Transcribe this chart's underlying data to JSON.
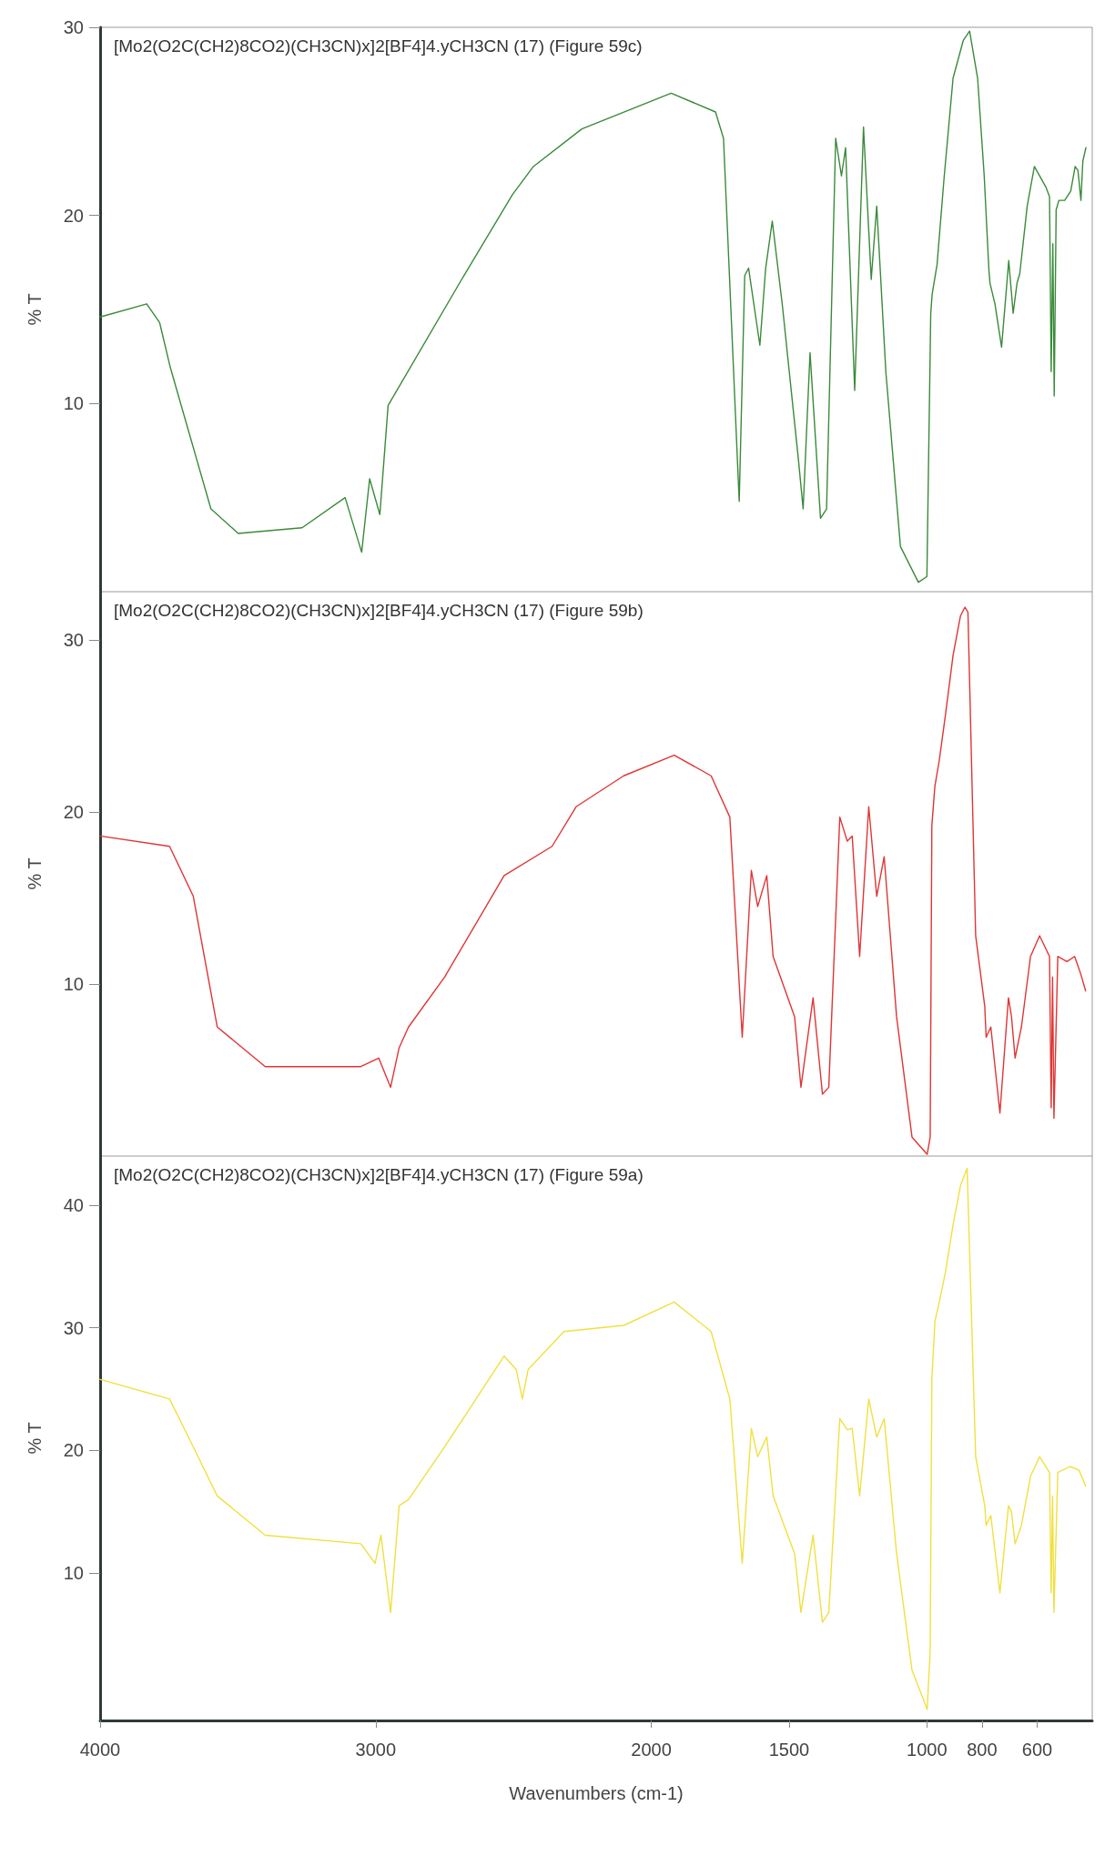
{
  "chart_data": [
    {
      "type": "line",
      "title": "[Mo2(O2C(CH2)8CO2)(CH3CN)x]2[BF4]4.yCH3CN (17) (Figure 59c)",
      "ylabel": "% T",
      "color": "#3a8a3a",
      "marker": "none",
      "tick_labels": "y",
      "xlim": [
        4000,
        400
      ],
      "xticks": [
        4000,
        3000,
        2000,
        1500,
        1000,
        800,
        600
      ],
      "ylim": [
        0,
        30
      ],
      "yticks": [
        10,
        20,
        30
      ],
      "x": [
        423,
        434,
        441,
        452,
        462,
        478,
        500,
        521,
        531,
        538,
        543,
        549,
        555,
        568,
        610,
        636,
        663,
        673,
        687,
        703,
        729,
        753,
        771,
        775,
        792,
        816,
        845,
        868,
        905,
        937,
        963,
        981,
        986,
        1000,
        1031,
        1096,
        1149,
        1182,
        1202,
        1230,
        1262,
        1295,
        1310,
        1331,
        1364,
        1386,
        1424,
        1449,
        1466,
        1525,
        1561,
        1585,
        1606,
        1647,
        1661,
        1681,
        1738,
        1767,
        1928,
        2252,
        2428,
        2504,
        2680,
        2955,
        2985,
        3022,
        3051,
        3111,
        3267,
        3499,
        3598,
        3745,
        3784,
        3831,
        4000
      ],
      "values": [
        23.6,
        22.9,
        20.8,
        22.4,
        22.6,
        21.3,
        20.8,
        20.8,
        20.3,
        10.4,
        18.5,
        11.7,
        21.0,
        21.5,
        22.6,
        20.5,
        16.9,
        16.4,
        14.8,
        17.6,
        13.0,
        15.3,
        16.4,
        17.1,
        22.1,
        27.3,
        29.8,
        29.3,
        27.3,
        22.1,
        17.4,
        15.8,
        14.8,
        0.8,
        0.5,
        2.4,
        11.7,
        20.5,
        16.6,
        24.7,
        10.7,
        23.6,
        22.1,
        24.1,
        4.4,
        3.9,
        12.7,
        4.4,
        7.0,
        15.3,
        19.7,
        17.2,
        13.1,
        17.2,
        16.8,
        4.8,
        24.1,
        25.5,
        26.5,
        24.6,
        22.6,
        21.1,
        16.8,
        9.9,
        4.1,
        6.0,
        2.1,
        5.0,
        3.4,
        3.1,
        4.4,
        11.9,
        14.3,
        15.3,
        14.6
      ]
    },
    {
      "type": "line",
      "title": "[Mo2(O2C(CH2)8CO2)(CH3CN)x]2[BF4]4.yCH3CN (17) (Figure 59b)",
      "ylabel": "% T",
      "color": "#e03535",
      "marker": "none",
      "tick_labels": "y",
      "xlim": [
        4000,
        400
      ],
      "xticks": [
        4000,
        3000,
        2000,
        1500,
        1000,
        800,
        600
      ],
      "ylim": [
        0,
        32.8
      ],
      "yticks": [
        10,
        20,
        30
      ],
      "x": [
        424,
        442,
        464,
        492,
        525,
        539,
        544,
        549,
        555,
        591,
        624,
        657,
        680,
        693,
        704,
        735,
        768,
        785,
        790,
        823,
        851,
        862,
        878,
        905,
        933,
        955,
        971,
        982,
        988,
        999,
        1054,
        1110,
        1155,
        1182,
        1211,
        1244,
        1271,
        1289,
        1316,
        1356,
        1379,
        1413,
        1457,
        1480,
        1558,
        1581,
        1614,
        1637,
        1670,
        1715,
        1783,
        1917,
        2100,
        2273,
        2360,
        2534,
        2750,
        2881,
        2915,
        2946,
        2989,
        3054,
        3401,
        3575,
        3662,
        3748,
        4000
      ],
      "values": [
        9.6,
        10.6,
        11.6,
        11.3,
        11.6,
        2.2,
        10.4,
        2.8,
        11.6,
        12.8,
        11.6,
        7.5,
        5.7,
        8.1,
        9.2,
        2.5,
        7.5,
        6.9,
        8.7,
        12.8,
        31.6,
        31.9,
        31.4,
        29.1,
        25.6,
        23.0,
        21.5,
        19.2,
        1.1,
        0.1,
        1.1,
        8.1,
        17.4,
        15.1,
        20.3,
        11.6,
        18.6,
        18.3,
        19.7,
        4.0,
        3.6,
        9.2,
        4.0,
        8.1,
        11.6,
        16.3,
        14.5,
        16.6,
        6.9,
        19.7,
        22.1,
        23.3,
        22.1,
        20.3,
        18.0,
        16.3,
        10.4,
        7.5,
        6.3,
        4.0,
        5.7,
        5.2,
        5.2,
        7.5,
        15.1,
        18.0,
        18.6
      ]
    },
    {
      "type": "line",
      "title": "[Mo2(O2C(CH2)8CO2)(CH3CN)x]2[BF4]4.yCH3CN (17) (Figure 59a)",
      "xlabel": "Wavenumbers (cm-1)",
      "ylabel": "% T",
      "color": "#f0e040",
      "marker": "none",
      "xlim": [
        4000,
        400
      ],
      "xticks": [
        4000,
        3000,
        2000,
        1500,
        1000,
        800,
        600
      ],
      "ylim": [
        -2,
        44
      ],
      "yticks": [
        10,
        20,
        30,
        40
      ],
      "x": [
        424,
        448,
        481,
        525,
        539,
        544,
        549,
        555,
        591,
        624,
        657,
        680,
        693,
        704,
        735,
        768,
        785,
        790,
        823,
        854,
        878,
        905,
        933,
        955,
        971,
        982,
        988,
        999,
        1054,
        1110,
        1155,
        1182,
        1211,
        1244,
        1271,
        1289,
        1316,
        1356,
        1379,
        1413,
        1457,
        1480,
        1558,
        1581,
        1614,
        1637,
        1670,
        1715,
        1783,
        1917,
        2100,
        2317,
        2447,
        2468,
        2490,
        2534,
        2750,
        2881,
        2915,
        2946,
        2981,
        3002,
        3054,
        3401,
        3575,
        3662,
        3748,
        4000
      ],
      "values": [
        17.1,
        18.4,
        18.7,
        18.2,
        6.8,
        16.3,
        8.4,
        18.2,
        19.5,
        17.9,
        13.9,
        12.4,
        15.0,
        15.5,
        8.4,
        14.7,
        13.9,
        15.5,
        19.5,
        43,
        41.6,
        38.4,
        34.5,
        32.1,
        30.5,
        25.8,
        3.7,
        -1.1,
        2.1,
        11.6,
        22.6,
        21.1,
        24.2,
        16.3,
        21.8,
        21.7,
        22.6,
        6.8,
        6.0,
        13.1,
        6.8,
        11.6,
        16.3,
        21.1,
        19.5,
        21.8,
        10.8,
        24.2,
        29.7,
        32.1,
        30.2,
        29.7,
        26.6,
        24.2,
        26.6,
        27.7,
        20.3,
        16.0,
        15.5,
        6.8,
        13.1,
        10.8,
        12.4,
        13.1,
        16.3,
        20.3,
        24.2,
        25.8
      ]
    }
  ]
}
